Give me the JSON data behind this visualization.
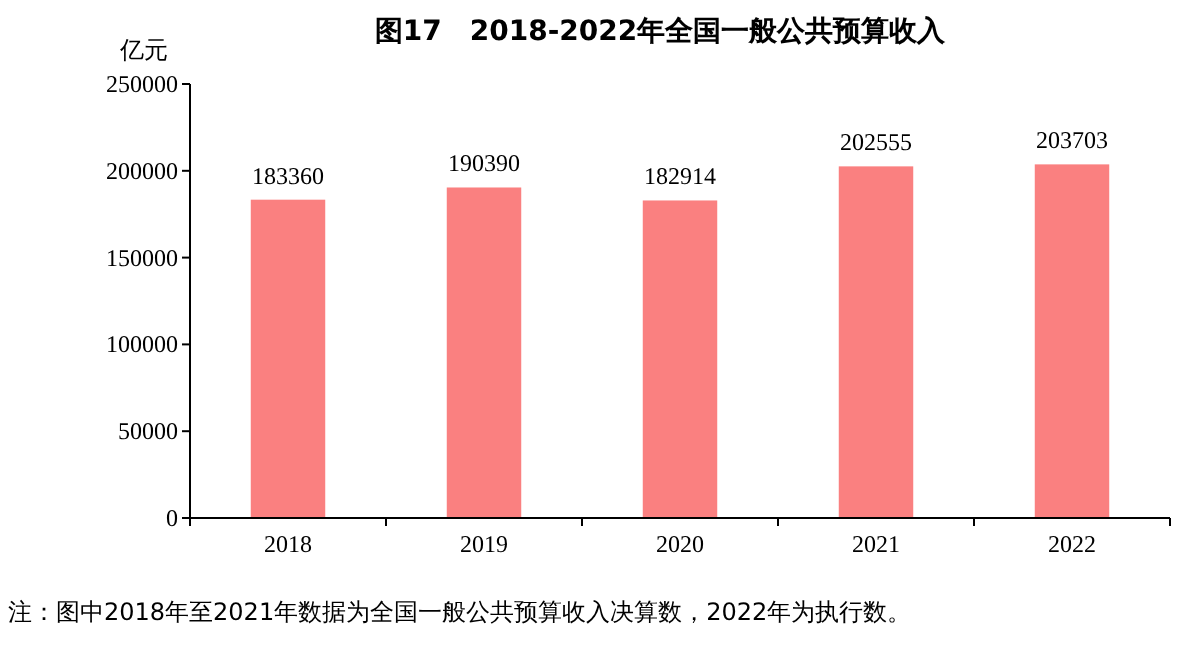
{
  "chart_data": {
    "type": "bar",
    "title": "图17　2018-2022年全国一般公共预算收入",
    "ylabel": "亿元",
    "categories": [
      "2018",
      "2019",
      "2020",
      "2021",
      "2022"
    ],
    "values": [
      183360,
      190390,
      182914,
      202555,
      203703
    ],
    "color": "#fa8080",
    "ylim": [
      0,
      250000
    ],
    "yticks": [
      0,
      50000,
      100000,
      150000,
      200000,
      250000
    ],
    "data_labels": true,
    "annotations": [
      "注：图中2018年至2021年数据为全国一般公共预算收入决算数，2022年为执行数。"
    ]
  }
}
